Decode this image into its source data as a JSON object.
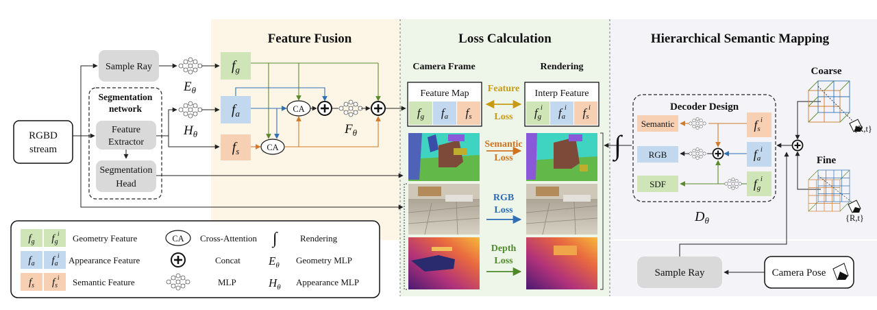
{
  "sections": {
    "feature_fusion": "Feature Fusion",
    "loss_calculation": "Loss Calculation",
    "hierarchical_mapping": "Hierarchical Semantic Mapping"
  },
  "input": {
    "line1": "RGBD",
    "line2": "stream"
  },
  "sample_ray_top": "Sample Ray",
  "segmentation": {
    "title_line1": "Segmentation",
    "title_line2": "network",
    "extractor_line1": "Feature",
    "extractor_line2": "Extractor",
    "head_line1": "Segmentation",
    "head_line2": "Head"
  },
  "symbols": {
    "E": "E",
    "H": "H",
    "F": "F",
    "D": "D",
    "theta": "θ",
    "f": "f",
    "g": "g",
    "a": "a",
    "s": "s",
    "i": "i",
    "ca": "CA",
    "integral": "∫"
  },
  "loss": {
    "camera_frame": "Camera Frame",
    "rendering": "Rendering",
    "feature_map": "Feature Map",
    "interp_feature": "Interp Feature",
    "feature_loss_1": "Feature",
    "feature_loss_2": "Loss",
    "semantic_loss_1": "Semantic",
    "semantic_loss_2": "Loss",
    "rgb_loss_1": "RGB",
    "rgb_loss_2": "Loss",
    "depth_loss_1": "Depth",
    "depth_loss_2": "Loss"
  },
  "decoder": {
    "title": "Decoder Design",
    "semantic": "Semantic",
    "rgb": "RGB",
    "sdf": "SDF"
  },
  "mapping": {
    "coarse": "Coarse",
    "fine": "Fine",
    "pose_label": "{R,t}",
    "sample_ray": "Sample Ray",
    "camera_pose": "Camera Pose"
  },
  "legend": {
    "geometry_feature": "Geometry Feature",
    "appearance_feature": "Appearance  Feature",
    "semantic_feature": "Semantic  Feature",
    "cross_attention": "Cross-Attention",
    "concat": "Concat",
    "mlp": "MLP",
    "rendering": "Rendering",
    "geometry_mlp": "Geometry MLP",
    "appearance_mlp": "Appearance MLP"
  },
  "colors": {
    "geometry": "#cfe5b8",
    "appearance": "#c2d8ee",
    "semantic": "#f7cfb3",
    "arrow_green": "#5a8a2c",
    "arrow_blue": "#2f6fb5",
    "arrow_orange": "#d07a2a",
    "feature_loss": "#c79a12",
    "semantic_loss": "#d0731f",
    "rgb_loss": "#2a6bb3",
    "depth_loss": "#4f8a2a",
    "fusion_bg": "#fdf6e6",
    "loss_bg": "#eef6ea",
    "mapping_bg": "#f3f3f8"
  }
}
